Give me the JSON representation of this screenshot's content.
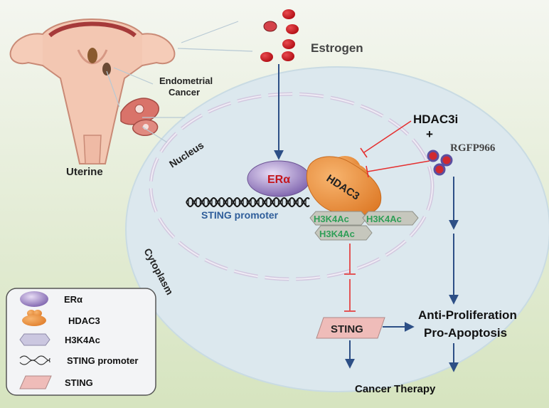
{
  "labels": {
    "estrogen": "Estrogen",
    "endometrial_cancer_line1": "Endometrial",
    "endometrial_cancer_line2": "Cancer",
    "uterine": "Uterine",
    "nucleus": "Nucleus",
    "cytoplasm": "Cytoplasm",
    "era": "ERα",
    "hdac3": "HDAC3",
    "h3k4ac": "H3K4Ac",
    "sting_promoter": "STING promoter",
    "hdac3i": "HDAC3i",
    "plus": "+",
    "rgfp966": "RGFP966",
    "sting": "STING",
    "anti_proliferation": "Anti-Proliferation",
    "pro_apoptosis": "Pro-Apoptosis",
    "cancer_therapy": "Cancer Therapy"
  },
  "legend": {
    "items": [
      {
        "icon": "era-ellipse-icon",
        "label": "ERα"
      },
      {
        "icon": "hdac3-shape-icon",
        "label": "HDAC3"
      },
      {
        "icon": "h3k4ac-hexagon-icon",
        "label": "H3K4Ac"
      },
      {
        "icon": "dna-helix-icon",
        "label": "STING promoter"
      },
      {
        "icon": "sting-parallelogram-icon",
        "label": "STING"
      }
    ]
  },
  "colors": {
    "background_top": "#f3f5ee",
    "background_bottom": "#d8e6c2",
    "cell": "#dde9ee",
    "nucleus_dash": "#c9bfd6",
    "era": "#8e74b8",
    "hdac3": "#e88c3a",
    "h3k4ac_fill": "#c9c9bd",
    "h3k4ac_text": "#2f9e57",
    "sting_fill": "#eebcba",
    "arrow_blue": "#2d4f86",
    "inhibit_red": "#e53030",
    "estrogen_red": "#c4151c",
    "promoter_text": "#2e5d9a"
  }
}
